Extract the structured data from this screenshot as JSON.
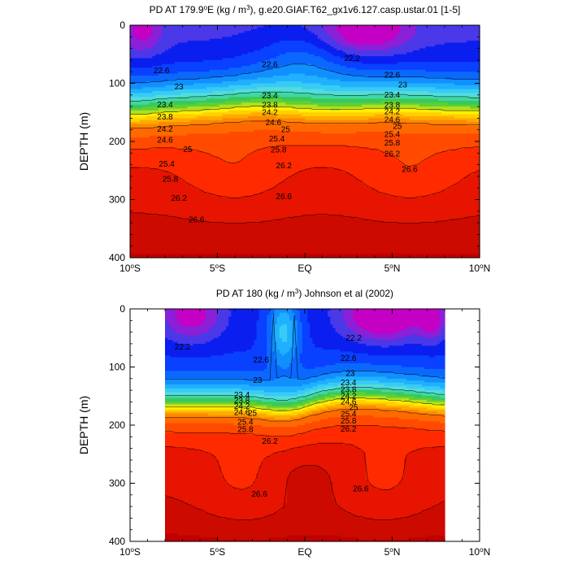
{
  "colors": {
    "palette": [
      "#c400c4",
      "#8a20d8",
      "#4b38e8",
      "#0a1ef0",
      "#0a40ff",
      "#0a68ff",
      "#1090ff",
      "#20b0ff",
      "#38ccf5",
      "#52dcdc",
      "#40d8a0",
      "#38c860",
      "#60d030",
      "#b0e020",
      "#ffee00",
      "#ffd000",
      "#ffaa00",
      "#ff8800",
      "#ff6a00",
      "#ff4a00",
      "#ff2a00",
      "#e61400",
      "#cc0a00",
      "#c00000"
    ],
    "levels": [
      21.6,
      21.8,
      22.0,
      22.2,
      22.4,
      22.6,
      22.8,
      23.0,
      23.2,
      23.4,
      23.6,
      23.8,
      24.0,
      24.2,
      24.4,
      24.6,
      24.8,
      25.0,
      25.4,
      25.8,
      26.2,
      26.6,
      26.8
    ]
  },
  "chart_data": [
    {
      "type": "contour",
      "title_parts": [
        "PD AT 179.9",
        "o",
        "E (kg / m",
        "3",
        "), g.e20.GIAF.T62_gx1v6.127.casp.ustar.01 [1-5]"
      ],
      "xlabel": "",
      "ylabel": "DEPTH (m)",
      "xlim": [
        -10,
        10
      ],
      "ylim": [
        400,
        0
      ],
      "data_xlim": [
        -10,
        10
      ],
      "x_ticks": [
        {
          "value": -10,
          "label": "10",
          "sup": "o",
          "hemi": "S"
        },
        {
          "value": -5,
          "label": "5",
          "sup": "o",
          "hemi": "S"
        },
        {
          "value": 0,
          "label": "EQ",
          "sup": "",
          "hemi": ""
        },
        {
          "value": 5,
          "label": "5",
          "sup": "o",
          "hemi": "N"
        },
        {
          "value": 10,
          "label": "10",
          "sup": "o",
          "hemi": "N"
        }
      ],
      "y_ticks": [
        {
          "value": 0,
          "label": "0"
        },
        {
          "value": 100,
          "label": "100"
        },
        {
          "value": 200,
          "label": "200"
        },
        {
          "value": 300,
          "label": "300"
        },
        {
          "value": 400,
          "label": "400"
        }
      ],
      "contour_labels": [
        {
          "x": -8.2,
          "y": 78,
          "text": "22.6"
        },
        {
          "x": -2.0,
          "y": 68,
          "text": "22.6"
        },
        {
          "x": 2.7,
          "y": 57,
          "text": "22.2"
        },
        {
          "x": 5.0,
          "y": 86,
          "text": "22.6"
        },
        {
          "x": -7.2,
          "y": 106,
          "text": "23"
        },
        {
          "x": 5.6,
          "y": 103,
          "text": "23"
        },
        {
          "x": -8.0,
          "y": 137,
          "text": "23.4"
        },
        {
          "x": -2.0,
          "y": 122,
          "text": "23.4"
        },
        {
          "x": 5.0,
          "y": 120,
          "text": "23.4"
        },
        {
          "x": -8.0,
          "y": 158,
          "text": "23.8"
        },
        {
          "x": -2.0,
          "y": 138,
          "text": "23.8"
        },
        {
          "x": 5.0,
          "y": 138,
          "text": "23.8"
        },
        {
          "x": -8.0,
          "y": 179,
          "text": "24.2"
        },
        {
          "x": -2.0,
          "y": 150,
          "text": "24.2"
        },
        {
          "x": 5.0,
          "y": 149,
          "text": "24.2"
        },
        {
          "x": -1.8,
          "y": 168,
          "text": "24.6"
        },
        {
          "x": 5.0,
          "y": 163,
          "text": "24.6"
        },
        {
          "x": -8.0,
          "y": 198,
          "text": "24.6"
        },
        {
          "x": -6.7,
          "y": 214,
          "text": "25"
        },
        {
          "x": -1.1,
          "y": 180,
          "text": "25"
        },
        {
          "x": 5.3,
          "y": 174,
          "text": "25"
        },
        {
          "x": -7.9,
          "y": 239,
          "text": "25.4"
        },
        {
          "x": -1.6,
          "y": 196,
          "text": "25.4"
        },
        {
          "x": 5.0,
          "y": 188,
          "text": "25.4"
        },
        {
          "x": -7.7,
          "y": 265,
          "text": "25.8"
        },
        {
          "x": -1.5,
          "y": 215,
          "text": "25.8"
        },
        {
          "x": 5.0,
          "y": 203,
          "text": "25.8"
        },
        {
          "x": -1.2,
          "y": 242,
          "text": "26.2"
        },
        {
          "x": 5.0,
          "y": 222,
          "text": "26.2"
        },
        {
          "x": -7.2,
          "y": 298,
          "text": "26.2"
        },
        {
          "x": -1.2,
          "y": 295,
          "text": "26.6"
        },
        {
          "x": 6.0,
          "y": 248,
          "text": "26.6"
        },
        {
          "x": -6.2,
          "y": 335,
          "text": "26.6"
        }
      ]
    },
    {
      "type": "contour",
      "title_parts": [
        "PD AT 180 (kg / m",
        "3",
        ") Johnson et al (2002)"
      ],
      "xlabel": "",
      "ylabel": "DEPTH (m)",
      "xlim": [
        -10,
        10
      ],
      "ylim": [
        400,
        0
      ],
      "data_xlim": [
        -8,
        8
      ],
      "x_ticks": [
        {
          "value": -10,
          "label": "10",
          "sup": "o",
          "hemi": "S"
        },
        {
          "value": -5,
          "label": "5",
          "sup": "o",
          "hemi": "S"
        },
        {
          "value": 0,
          "label": "EQ",
          "sup": "",
          "hemi": ""
        },
        {
          "value": 5,
          "label": "5",
          "sup": "o",
          "hemi": "N"
        },
        {
          "value": 10,
          "label": "10",
          "sup": "o",
          "hemi": "N"
        }
      ],
      "y_ticks": [
        {
          "value": 0,
          "label": "0"
        },
        {
          "value": 100,
          "label": "100"
        },
        {
          "value": 200,
          "label": "200"
        },
        {
          "value": 300,
          "label": "300"
        },
        {
          "value": 400,
          "label": "400"
        }
      ],
      "contour_labels": [
        {
          "x": -7.0,
          "y": 66,
          "text": "22.2"
        },
        {
          "x": 2.8,
          "y": 50,
          "text": "22.2"
        },
        {
          "x": -2.5,
          "y": 88,
          "text": "22.6"
        },
        {
          "x": 2.5,
          "y": 85,
          "text": "22.6"
        },
        {
          "x": -2.7,
          "y": 123,
          "text": "23"
        },
        {
          "x": 2.6,
          "y": 111,
          "text": "23"
        },
        {
          "x": -3.6,
          "y": 148,
          "text": "23.4"
        },
        {
          "x": 2.5,
          "y": 127,
          "text": "23.4"
        },
        {
          "x": -3.6,
          "y": 158,
          "text": "23.8"
        },
        {
          "x": 2.5,
          "y": 139,
          "text": "23.8"
        },
        {
          "x": -3.6,
          "y": 168,
          "text": "24.2"
        },
        {
          "x": 2.5,
          "y": 150,
          "text": "24.2"
        },
        {
          "x": -3.6,
          "y": 178,
          "text": "24.6"
        },
        {
          "x": 2.5,
          "y": 160,
          "text": "24.6"
        },
        {
          "x": -3.0,
          "y": 180,
          "text": "25"
        },
        {
          "x": 2.8,
          "y": 170,
          "text": "25"
        },
        {
          "x": -3.4,
          "y": 195,
          "text": "25.4"
        },
        {
          "x": 2.5,
          "y": 181,
          "text": "25.4"
        },
        {
          "x": -3.4,
          "y": 208,
          "text": "25.8"
        },
        {
          "x": 2.5,
          "y": 193,
          "text": "25.8"
        },
        {
          "x": -2.0,
          "y": 228,
          "text": "26.2"
        },
        {
          "x": 2.5,
          "y": 207,
          "text": "26.2"
        },
        {
          "x": -2.6,
          "y": 319,
          "text": "26.6"
        },
        {
          "x": 3.2,
          "y": 310,
          "text": "26.6"
        }
      ]
    }
  ]
}
